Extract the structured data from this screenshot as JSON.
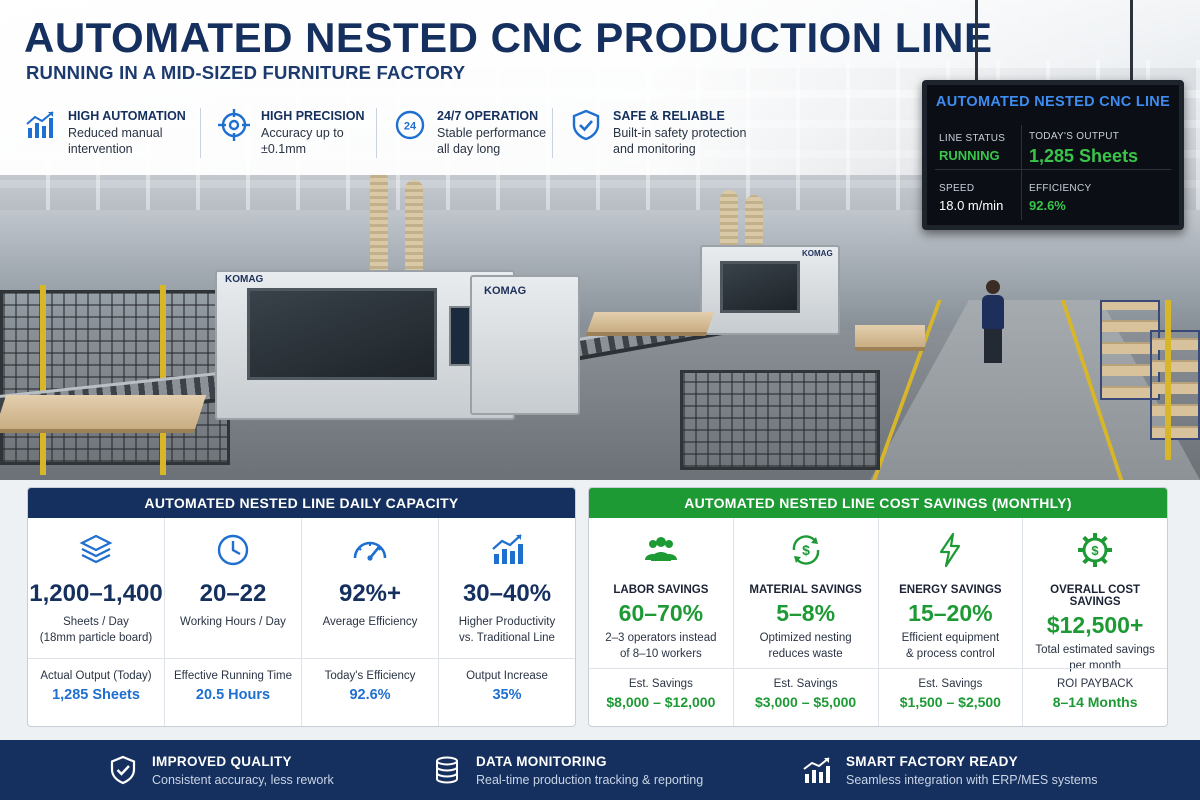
{
  "header": {
    "title": "AUTOMATED NESTED CNC PRODUCTION LINE",
    "subtitle": "RUNNING IN A MID-SIZED FURNITURE FACTORY"
  },
  "features": [
    {
      "icon": "bar-chart-up-icon",
      "title": "HIGH AUTOMATION",
      "line1": "Reduced manual",
      "line2": "intervention"
    },
    {
      "icon": "crosshair-icon",
      "title": "HIGH PRECISION",
      "line1": "Accuracy up to",
      "line2": "±0.1mm"
    },
    {
      "icon": "clock-24-icon",
      "title": "24/7 OPERATION",
      "line1": "Stable performance",
      "line2": "all day long"
    },
    {
      "icon": "shield-check-icon",
      "title": "SAFE & RELIABLE",
      "line1": "Built-in safety protection",
      "line2": "and monitoring"
    }
  ],
  "machine_labels": {
    "brand_a": "KOMAG",
    "brand_b": "KOMAG",
    "brand_c": "KOMAG"
  },
  "monitor": {
    "title": "AUTOMATED NESTED CNC LINE",
    "status_label": "LINE STATUS",
    "status_value": "RUNNING",
    "output_label": "TODAY'S OUTPUT",
    "output_value": "1,285 Sheets",
    "speed_label": "SPEED",
    "speed_value": "18.0 m/min",
    "efficiency_label": "EFFICIENCY",
    "efficiency_value": "92.6%"
  },
  "capacity": {
    "heading": "AUTOMATED NESTED LINE DAILY CAPACITY",
    "color": "#15305e",
    "cols": [
      {
        "icon": "layers-icon",
        "value": "1,200–1,400",
        "desc1": "Sheets / Day",
        "desc2": "(18mm particle board)",
        "blabel": "Actual Output (Today)",
        "bval": "1,285 Sheets"
      },
      {
        "icon": "clock-icon",
        "value": "20–22",
        "desc1": "Working Hours / Day",
        "desc2": "",
        "blabel": "Effective Running Time",
        "bval": "20.5 Hours"
      },
      {
        "icon": "gauge-icon",
        "value": "92%+",
        "desc1": "Average Efficiency",
        "desc2": "",
        "blabel": "Today's Efficiency",
        "bval": "92.6%"
      },
      {
        "icon": "growth-chart-icon",
        "value": "30–40%",
        "desc1": "Higher Productivity",
        "desc2": "vs. Traditional Line",
        "blabel": "Output Increase",
        "bval": "35%"
      }
    ]
  },
  "savings": {
    "heading": "AUTOMATED NESTED LINE COST SAVINGS (MONTHLY)",
    "color": "#1e9a35",
    "cols": [
      {
        "icon": "people-icon",
        "label": "LABOR SAVINGS",
        "value": "60–70%",
        "desc1": "2–3 operators instead",
        "desc2": "of 8–10 workers",
        "blabel": "Est. Savings",
        "bval": "$8,000 – $12,000"
      },
      {
        "icon": "dollar-recycle-icon",
        "label": "MATERIAL SAVINGS",
        "value": "5–8%",
        "desc1": "Optimized nesting",
        "desc2": "reduces waste",
        "blabel": "Est. Savings",
        "bval": "$3,000 – $5,000"
      },
      {
        "icon": "lightning-icon",
        "label": "ENERGY SAVINGS",
        "value": "15–20%",
        "desc1": "Efficient equipment",
        "desc2": "& process control",
        "blabel": "Est. Savings",
        "bval": "$1,500 – $2,500"
      },
      {
        "icon": "gear-dollar-icon",
        "label": "OVERALL COST SAVINGS",
        "value": "$12,500+",
        "desc1": "Total estimated savings",
        "desc2": "per month",
        "blabel": "ROI PAYBACK",
        "bval": "8–14 Months"
      }
    ]
  },
  "footer": [
    {
      "icon": "shield-check-icon",
      "title": "IMPROVED QUALITY",
      "desc": "Consistent accuracy, less rework"
    },
    {
      "icon": "database-icon",
      "title": "DATA MONITORING",
      "desc": "Real-time production tracking & reporting"
    },
    {
      "icon": "growth-chart-icon",
      "title": "SMART FACTORY READY",
      "desc": "Seamless integration with ERP/MES systems"
    }
  ]
}
